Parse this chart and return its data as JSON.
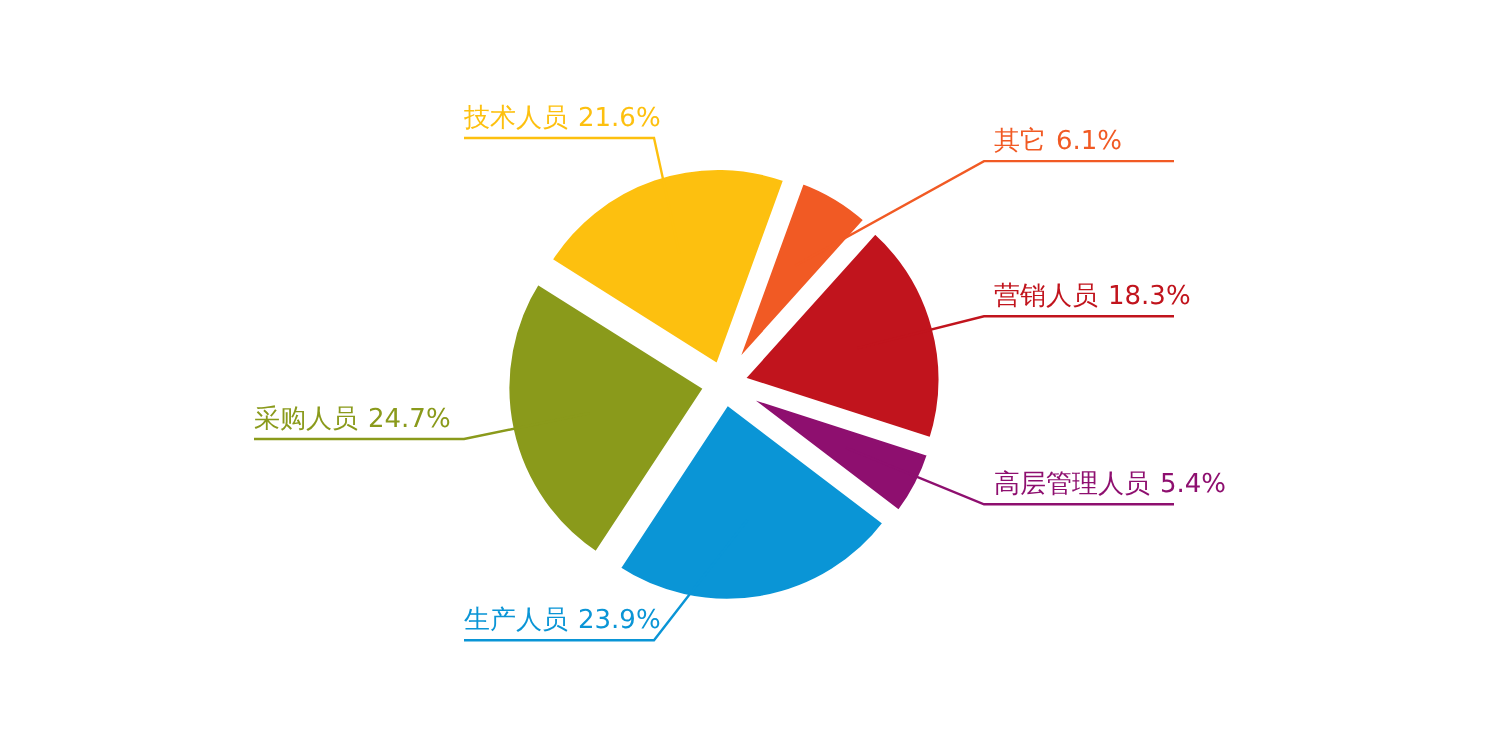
{
  "chart_data": {
    "type": "pie",
    "categories": [
      "其它",
      "营销人员",
      "高层管理人员",
      "生产人员",
      "采购人员",
      "技术人员"
    ],
    "values": [
      6.1,
      18.3,
      5.4,
      23.9,
      24.7,
      21.6
    ],
    "colors": [
      "#f15a24",
      "#c1141d",
      "#8e0f6f",
      "#0a95d6",
      "#8a9a1b",
      "#fdc00f"
    ],
    "value_labels": [
      "6.1%",
      "18.3%",
      "5.4%",
      "23.9%",
      "24.7%",
      "21.6%"
    ]
  }
}
